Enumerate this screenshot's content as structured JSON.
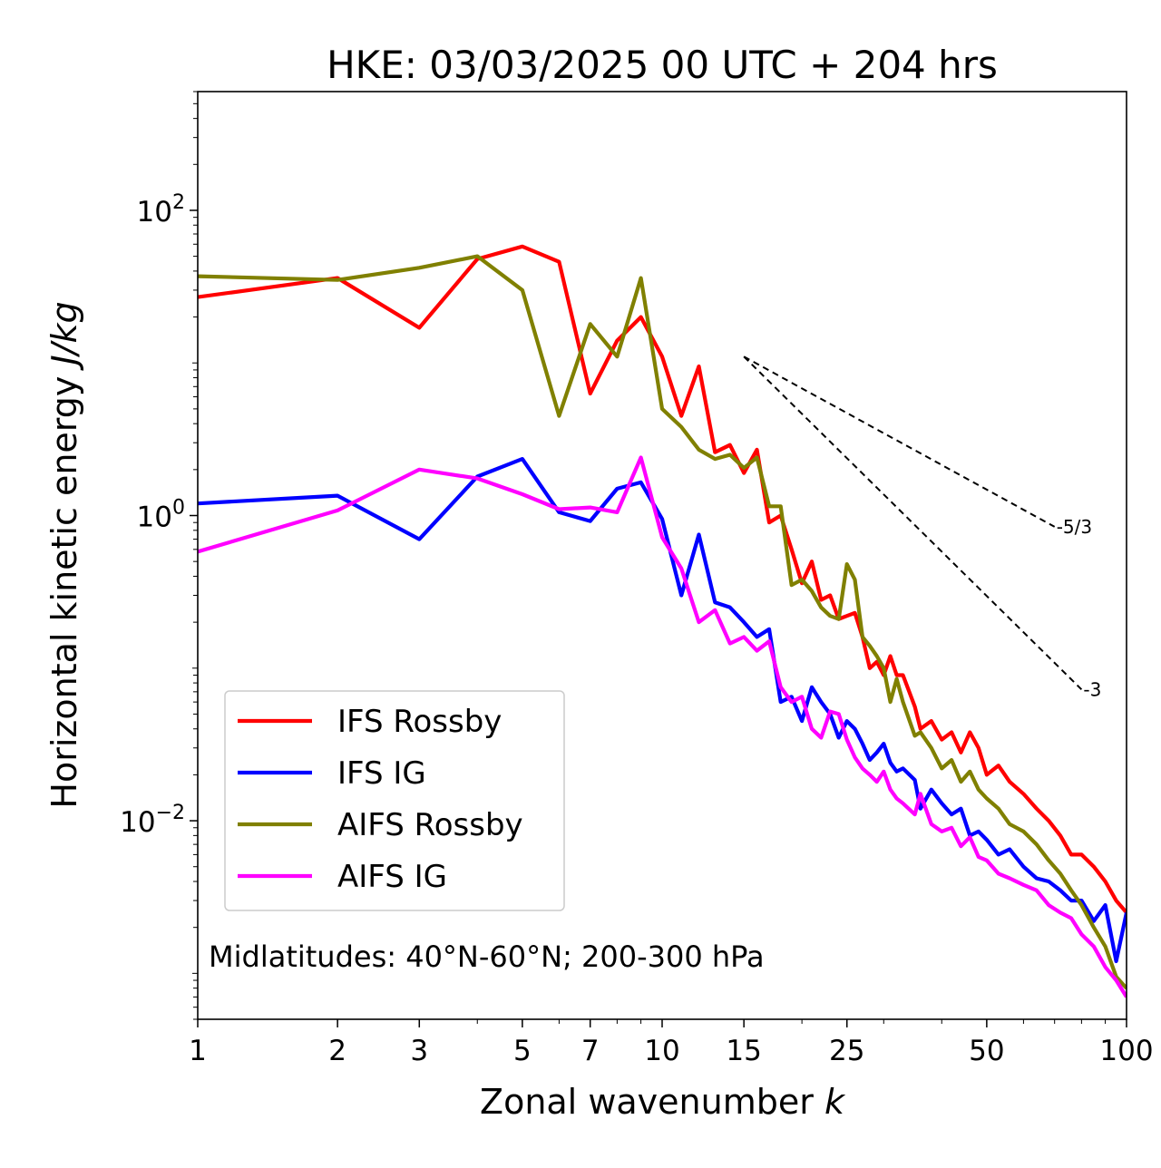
{
  "chart_data": {
    "type": "line",
    "title": "HKE: 03/03/2025 00 UTC + 204 hrs",
    "xlabel": "Zonal wavenumber",
    "xlabel_symbol": "k",
    "ylabel": "Horizontal kinetic energy",
    "ylabel_unit": "J/kg",
    "xscale": "log",
    "yscale": "log",
    "xlim": [
      1,
      100
    ],
    "ylim": [
      0.0005,
      600
    ],
    "x_ticks": [
      1,
      2,
      3,
      5,
      7,
      10,
      15,
      25,
      50,
      100
    ],
    "x_tick_labels": [
      "1",
      "2",
      "3",
      "5",
      "7",
      "10",
      "15",
      "25",
      "50",
      "100"
    ],
    "y_ticks": [
      {
        "base": "10",
        "exp": "2",
        "value": 100
      },
      {
        "base": "10",
        "exp": "0",
        "value": 1
      },
      {
        "base": "10",
        "exp": "−2",
        "value": 0.01
      }
    ],
    "annotation": "Midlatitudes: 40°N-60°N; 200-300 hPa",
    "legend_position": "lower-left",
    "series": [
      {
        "name": "IFS Rossby",
        "color": "#ff0000",
        "points": [
          [
            1,
            27
          ],
          [
            2,
            36
          ],
          [
            3,
            17
          ],
          [
            4,
            48
          ],
          [
            5,
            58
          ],
          [
            6,
            46
          ],
          [
            7,
            6.3
          ],
          [
            8,
            14
          ],
          [
            9,
            20
          ],
          [
            10,
            11
          ],
          [
            11,
            4.5
          ],
          [
            12,
            9.5
          ],
          [
            13,
            2.6
          ],
          [
            14,
            2.9
          ],
          [
            15,
            1.9
          ],
          [
            16,
            2.7
          ],
          [
            17,
            0.9
          ],
          [
            18,
            1.0
          ],
          [
            19,
            0.6
          ],
          [
            20,
            0.36
          ],
          [
            21,
            0.5
          ],
          [
            22,
            0.28
          ],
          [
            23,
            0.3
          ],
          [
            24,
            0.21
          ],
          [
            25,
            0.22
          ],
          [
            26,
            0.23
          ],
          [
            27,
            0.16
          ],
          [
            28,
            0.1
          ],
          [
            29,
            0.11
          ],
          [
            30,
            0.09
          ],
          [
            31,
            0.12
          ],
          [
            32,
            0.09
          ],
          [
            33,
            0.09
          ],
          [
            35,
            0.056
          ],
          [
            36,
            0.04
          ],
          [
            38,
            0.045
          ],
          [
            40,
            0.034
          ],
          [
            42,
            0.038
          ],
          [
            44,
            0.028
          ],
          [
            46,
            0.038
          ],
          [
            48,
            0.03
          ],
          [
            50,
            0.02
          ],
          [
            53,
            0.023
          ],
          [
            56,
            0.018
          ],
          [
            60,
            0.015
          ],
          [
            64,
            0.012
          ],
          [
            68,
            0.01
          ],
          [
            72,
            0.008
          ],
          [
            76,
            0.006
          ],
          [
            80,
            0.006
          ],
          [
            85,
            0.005
          ],
          [
            90,
            0.004
          ],
          [
            95,
            0.003
          ],
          [
            100,
            0.0025
          ]
        ]
      },
      {
        "name": "IFS IG",
        "color": "#0000ff",
        "points": [
          [
            1,
            1.2
          ],
          [
            2,
            1.35
          ],
          [
            3,
            0.7
          ],
          [
            4,
            1.8
          ],
          [
            5,
            2.35
          ],
          [
            6,
            1.05
          ],
          [
            7,
            0.92
          ],
          [
            8,
            1.5
          ],
          [
            9,
            1.65
          ],
          [
            10,
            0.95
          ],
          [
            11,
            0.3
          ],
          [
            12,
            0.75
          ],
          [
            13,
            0.27
          ],
          [
            14,
            0.25
          ],
          [
            15,
            0.2
          ],
          [
            16,
            0.16
          ],
          [
            17,
            0.18
          ],
          [
            18,
            0.06
          ],
          [
            19,
            0.065
          ],
          [
            20,
            0.045
          ],
          [
            21,
            0.075
          ],
          [
            22,
            0.06
          ],
          [
            23,
            0.05
          ],
          [
            24,
            0.035
          ],
          [
            25,
            0.045
          ],
          [
            26,
            0.04
          ],
          [
            27,
            0.032
          ],
          [
            28,
            0.025
          ],
          [
            29,
            0.028
          ],
          [
            30,
            0.032
          ],
          [
            31,
            0.024
          ],
          [
            32,
            0.021
          ],
          [
            33,
            0.022
          ],
          [
            35,
            0.0185
          ],
          [
            36,
            0.012
          ],
          [
            38,
            0.016
          ],
          [
            40,
            0.013
          ],
          [
            42,
            0.011
          ],
          [
            44,
            0.012
          ],
          [
            46,
            0.008
          ],
          [
            48,
            0.0085
          ],
          [
            50,
            0.0075
          ],
          [
            53,
            0.006
          ],
          [
            56,
            0.0065
          ],
          [
            60,
            0.005
          ],
          [
            64,
            0.0042
          ],
          [
            68,
            0.004
          ],
          [
            72,
            0.0035
          ],
          [
            76,
            0.003
          ],
          [
            80,
            0.003
          ],
          [
            85,
            0.0022
          ],
          [
            90,
            0.0028
          ],
          [
            95,
            0.0012
          ],
          [
            100,
            0.0025
          ]
        ]
      },
      {
        "name": "AIFS Rossby",
        "color": "#808000",
        "points": [
          [
            1,
            37
          ],
          [
            2,
            35
          ],
          [
            3,
            42
          ],
          [
            4,
            50
          ],
          [
            5,
            30
          ],
          [
            6,
            4.5
          ],
          [
            7,
            18
          ],
          [
            8,
            11
          ],
          [
            9,
            36
          ],
          [
            10,
            5
          ],
          [
            11,
            3.8
          ],
          [
            12,
            2.7
          ],
          [
            13,
            2.35
          ],
          [
            14,
            2.5
          ],
          [
            15,
            2.05
          ],
          [
            16,
            2.4
          ],
          [
            17,
            1.15
          ],
          [
            18,
            1.15
          ],
          [
            19,
            0.35
          ],
          [
            20,
            0.38
          ],
          [
            21,
            0.32
          ],
          [
            22,
            0.25
          ],
          [
            23,
            0.22
          ],
          [
            24,
            0.21
          ],
          [
            25,
            0.48
          ],
          [
            26,
            0.38
          ],
          [
            27,
            0.16
          ],
          [
            28,
            0.14
          ],
          [
            29,
            0.12
          ],
          [
            30,
            0.1
          ],
          [
            31,
            0.06
          ],
          [
            32,
            0.085
          ],
          [
            33,
            0.06
          ],
          [
            35,
            0.036
          ],
          [
            36,
            0.038
          ],
          [
            38,
            0.03
          ],
          [
            40,
            0.022
          ],
          [
            42,
            0.025
          ],
          [
            44,
            0.018
          ],
          [
            46,
            0.021
          ],
          [
            48,
            0.016
          ],
          [
            50,
            0.014
          ],
          [
            53,
            0.012
          ],
          [
            56,
            0.0095
          ],
          [
            60,
            0.0085
          ],
          [
            64,
            0.007
          ],
          [
            68,
            0.0055
          ],
          [
            72,
            0.0045
          ],
          [
            76,
            0.0035
          ],
          [
            80,
            0.0028
          ],
          [
            85,
            0.002
          ],
          [
            90,
            0.0015
          ],
          [
            95,
            0.00095
          ],
          [
            100,
            0.0008
          ]
        ]
      },
      {
        "name": "AIFS IG",
        "color": "#ff00ff",
        "points": [
          [
            1,
            0.58
          ],
          [
            2,
            1.08
          ],
          [
            3,
            2.0
          ],
          [
            4,
            1.75
          ],
          [
            5,
            1.38
          ],
          [
            6,
            1.1
          ],
          [
            7,
            1.13
          ],
          [
            8,
            1.05
          ],
          [
            9,
            2.4
          ],
          [
            10,
            0.72
          ],
          [
            11,
            0.45
          ],
          [
            12,
            0.2
          ],
          [
            13,
            0.24
          ],
          [
            14,
            0.145
          ],
          [
            15,
            0.16
          ],
          [
            16,
            0.13
          ],
          [
            17,
            0.15
          ],
          [
            18,
            0.075
          ],
          [
            19,
            0.06
          ],
          [
            20,
            0.065
          ],
          [
            21,
            0.04
          ],
          [
            22,
            0.035
          ],
          [
            23,
            0.052
          ],
          [
            24,
            0.05
          ],
          [
            25,
            0.034
          ],
          [
            26,
            0.026
          ],
          [
            27,
            0.022
          ],
          [
            28,
            0.02
          ],
          [
            29,
            0.018
          ],
          [
            30,
            0.021
          ],
          [
            31,
            0.016
          ],
          [
            32,
            0.014
          ],
          [
            33,
            0.013
          ],
          [
            35,
            0.011
          ],
          [
            36,
            0.015
          ],
          [
            38,
            0.0095
          ],
          [
            40,
            0.0085
          ],
          [
            42,
            0.009
          ],
          [
            44,
            0.0068
          ],
          [
            46,
            0.0078
          ],
          [
            48,
            0.0058
          ],
          [
            50,
            0.0055
          ],
          [
            53,
            0.0045
          ],
          [
            56,
            0.0042
          ],
          [
            60,
            0.0038
          ],
          [
            64,
            0.0035
          ],
          [
            68,
            0.0028
          ],
          [
            72,
            0.0025
          ],
          [
            76,
            0.0023
          ],
          [
            80,
            0.0018
          ],
          [
            85,
            0.0015
          ],
          [
            90,
            0.0011
          ],
          [
            95,
            0.0009
          ],
          [
            100,
            0.0007
          ]
        ]
      }
    ],
    "reference_slopes": [
      {
        "label": "-5/3",
        "slope": -1.6667,
        "x_start": 15,
        "x_end": 70,
        "y_start": 11
      },
      {
        "label": "-3",
        "slope": -3,
        "x_start": 15,
        "x_end": 80,
        "y_start": 11
      }
    ]
  }
}
